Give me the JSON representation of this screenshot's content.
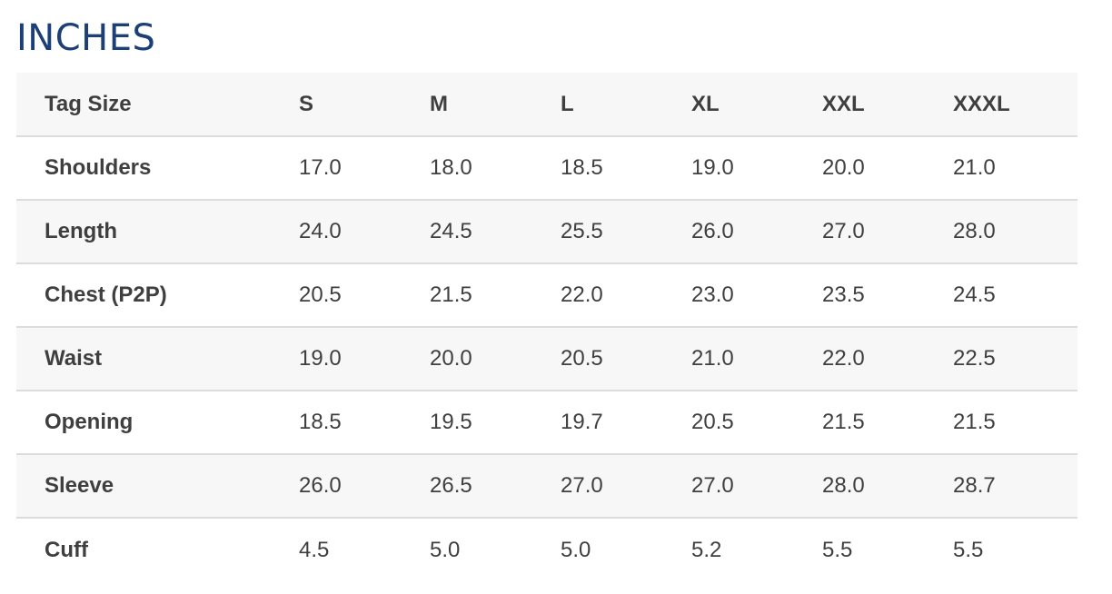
{
  "title": "INCHES",
  "table": {
    "header": [
      "Tag Size",
      "S",
      "M",
      "L",
      "XL",
      "XXL",
      "XXXL"
    ],
    "rows": [
      {
        "label": "Shoulders",
        "values": [
          "17.0",
          "18.0",
          "18.5",
          "19.0",
          "20.0",
          "21.0"
        ]
      },
      {
        "label": "Length",
        "values": [
          "24.0",
          "24.5",
          "25.5",
          "26.0",
          "27.0",
          "28.0"
        ]
      },
      {
        "label": "Chest (P2P)",
        "values": [
          "20.5",
          "21.5",
          "22.0",
          "23.0",
          "23.5",
          "24.5"
        ]
      },
      {
        "label": "Waist",
        "values": [
          "19.0",
          "20.0",
          "20.5",
          "21.0",
          "22.0",
          "22.5"
        ]
      },
      {
        "label": "Opening",
        "values": [
          "18.5",
          "19.5",
          "19.7",
          "20.5",
          "21.5",
          "21.5"
        ]
      },
      {
        "label": "Sleeve",
        "values": [
          "26.0",
          "26.5",
          "27.0",
          "27.0",
          "28.0",
          "28.7"
        ]
      },
      {
        "label": "Cuff",
        "values": [
          "4.5",
          "5.0",
          "5.0",
          "5.2",
          "5.5",
          "5.5"
        ]
      }
    ]
  },
  "colors": {
    "title": "#1c3f78",
    "text": "#3f3f3f",
    "row_shade": "#f7f7f7",
    "divider": "#dcdcdc"
  }
}
